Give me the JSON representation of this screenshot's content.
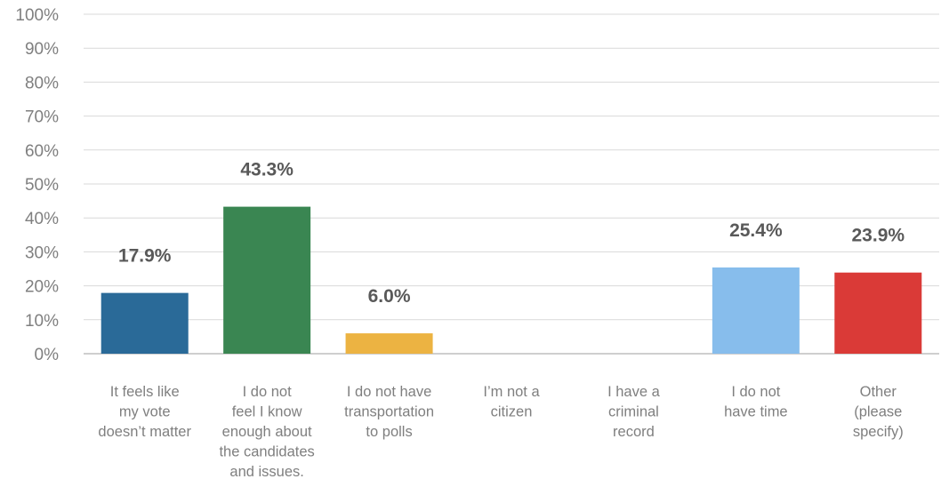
{
  "chart_data": {
    "type": "bar",
    "categories": [
      [
        "It feels like",
        "my vote",
        "doesn’t matter"
      ],
      [
        "I do not",
        "feel I know",
        "enough about",
        "the candidates",
        "and issues."
      ],
      [
        "I do not have",
        "transportation",
        "to polls"
      ],
      [
        "I’m not a",
        "citizen"
      ],
      [
        "I have a",
        "criminal",
        "record"
      ],
      [
        "I do not",
        "have time"
      ],
      [
        "Other",
        "(please",
        "specify)"
      ]
    ],
    "values": [
      17.9,
      43.3,
      6.0,
      null,
      null,
      25.4,
      23.9
    ],
    "data_labels": [
      "17.9%",
      "43.3%",
      "6.0%",
      "",
      "",
      "25.4%",
      "23.9%"
    ],
    "colors": [
      "#2a6a98",
      "#3a8652",
      "#ecb342",
      "#999999",
      "#999999",
      "#87bdec",
      "#da3a37"
    ],
    "ylim": [
      0,
      100
    ],
    "yticks": [
      0,
      10,
      20,
      30,
      40,
      50,
      60,
      70,
      80,
      90,
      100
    ],
    "ytick_labels": [
      "0%",
      "10%",
      "20%",
      "30%",
      "40%",
      "50%",
      "60%",
      "70%",
      "80%",
      "90%",
      "100%"
    ],
    "title": "",
    "xlabel": "",
    "ylabel": "",
    "grid": true,
    "legend": "none"
  }
}
